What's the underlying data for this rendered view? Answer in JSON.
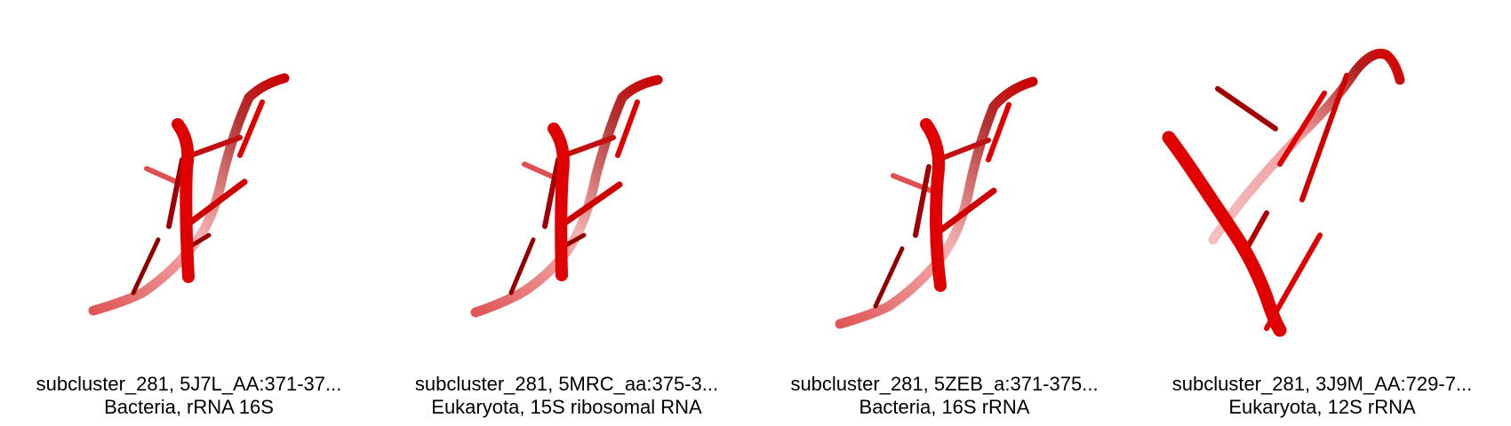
{
  "panels": [
    {
      "title": "subcluster_281, 5J7L_AA:371-37...",
      "subtitle": "Bacteria, rRNA 16S"
    },
    {
      "title": "subcluster_281, 5MRC_aa:375-3...",
      "subtitle": "Eukaryota, 15S ribosomal RNA"
    },
    {
      "title": "subcluster_281, 5ZEB_a:371-375...",
      "subtitle": "Bacteria, 16S rRNA"
    },
    {
      "title": "subcluster_281, 3J9M_AA:729-7...",
      "subtitle": "Eukaryota, 12S rRNA"
    }
  ],
  "colors": {
    "strand_main": "#e00000",
    "strand_dark": "#a00000",
    "strand_light": "#f08080"
  }
}
